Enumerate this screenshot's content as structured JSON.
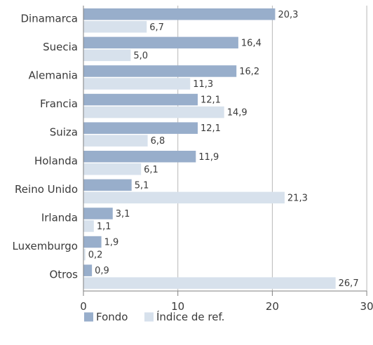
{
  "chart_data": {
    "type": "bar",
    "orientation": "horizontal",
    "categories": [
      "Dinamarca",
      "Suecia",
      "Alemania",
      "Francia",
      "Suiza",
      "Holanda",
      "Reino Unido",
      "Irlanda",
      "Luxemburgo",
      "Otros"
    ],
    "series": [
      {
        "name": "Fondo",
        "values": [
          20.3,
          16.4,
          16.2,
          12.1,
          12.1,
          11.9,
          5.1,
          3.1,
          1.9,
          0.9
        ],
        "labels": [
          "20,3",
          "16,4",
          "16,2",
          "12,1",
          "12,1",
          "11,9",
          "5,1",
          "3,1",
          "1,9",
          "0,9"
        ],
        "color": "#98aecb"
      },
      {
        "name": "Índice de ref.",
        "values": [
          6.7,
          5.0,
          11.3,
          14.9,
          6.8,
          6.1,
          21.3,
          1.1,
          0.2,
          26.7
        ],
        "labels": [
          "6,7",
          "5,0",
          "11,3",
          "14,9",
          "6,8",
          "6,1",
          "21,3",
          "1,1",
          "0,2",
          "26,7"
        ],
        "color": "#d7e1ec"
      }
    ],
    "xlim": [
      0,
      30
    ],
    "xticks": [
      0,
      10,
      20,
      30
    ],
    "xtick_labels": [
      "0",
      "10",
      "20",
      "30"
    ],
    "grid": true,
    "legend_position": "bottom-left"
  },
  "colors": {
    "grid": "#b8b8b8",
    "axis": "#7f7f7f",
    "text": "#3a3a3a"
  }
}
